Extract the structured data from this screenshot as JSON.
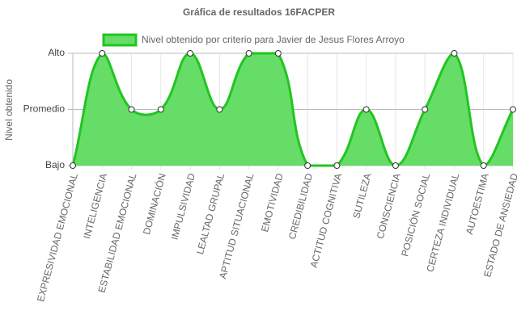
{
  "chart_data": {
    "type": "line",
    "title": "Gráfica de resultados 16FACPER",
    "y_label": "Nivel obtenido",
    "categories": [
      "EXPRESIVIDAD EMOCIONAL",
      "INTELIGENCIA",
      "ESTABILIDAD EMOCIONAL",
      "DOMINACIÓN",
      "IMPULSIVIDAD",
      "LEALTAD GRUPAL",
      "APTITUD SITUACIONAL",
      "EMOTIVIDAD",
      "CREDIBILIDAD",
      "ACTITUD COGNITIVA",
      "SUTILEZA",
      "CONSCIENCIA",
      "POSICIÓN SOCIAL",
      "CERTEZA INDIVIDUAL",
      "AUTOESTIMA",
      "ESTADO DE ANSIEDAD"
    ],
    "series": [
      {
        "name": "Nivel obtenido por criterio para Javier de Jesus Flores Arroyo",
        "color": "#22c522",
        "fill": "#66dd66",
        "values": [
          1,
          3,
          2,
          2,
          3,
          2,
          3,
          3,
          1,
          1,
          2,
          1,
          2,
          3,
          1,
          2
        ]
      }
    ],
    "ylim": [
      1,
      3
    ],
    "yticks": [
      {
        "value": 1,
        "label": "Bajo"
      },
      {
        "value": 2,
        "label": "Promedio"
      },
      {
        "value": 3,
        "label": "Alto"
      }
    ],
    "grid": true,
    "legend": "top"
  }
}
